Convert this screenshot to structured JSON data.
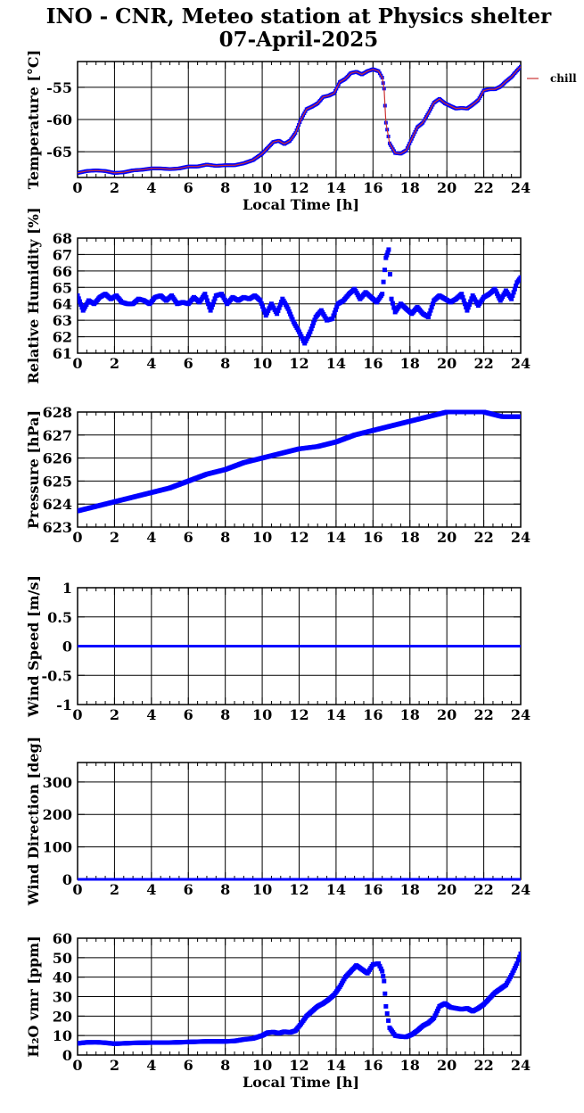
{
  "header": {
    "title_line1": "INO - CNR, Meteo station at Physics shelter",
    "title_line2": "07-April-2025"
  },
  "colors": {
    "series": "#0000ff",
    "temperature_line": "#cc3333",
    "grid": "#000000"
  },
  "chart_data": [
    {
      "id": "temperature",
      "type": "scatter",
      "ylabel": "Temperature [°C]",
      "xlabel": "Local Time [h]",
      "xlim": [
        0,
        24
      ],
      "ylim": [
        -69,
        -51
      ],
      "yticks": [
        -65,
        -60,
        -55
      ],
      "ytick_labels": [
        "-65",
        "-60",
        "-55"
      ],
      "xticks": [
        0,
        2,
        4,
        6,
        8,
        10,
        12,
        14,
        16,
        18,
        20,
        22,
        24
      ],
      "grid": true,
      "legend": {
        "label": "chill",
        "position": "right-top"
      },
      "x": [
        0,
        0.5,
        1,
        1.5,
        2,
        2.5,
        3,
        3.5,
        4,
        4.5,
        5,
        5.5,
        6,
        6.5,
        7,
        7.5,
        8,
        8.5,
        9,
        9.5,
        10,
        10.3,
        10.6,
        10.9,
        11.2,
        11.5,
        11.8,
        12.1,
        12.4,
        12.7,
        13.0,
        13.3,
        13.6,
        13.9,
        14.2,
        14.5,
        14.8,
        15.1,
        15.4,
        15.7,
        16.0,
        16.3,
        16.5,
        16.6,
        16.7,
        16.9,
        17.2,
        17.5,
        17.8,
        18.1,
        18.4,
        18.7,
        19.0,
        19.3,
        19.6,
        19.9,
        20.2,
        20.5,
        20.8,
        21.1,
        21.4,
        21.7,
        22.0,
        22.3,
        22.6,
        22.9,
        23.2,
        23.5,
        23.8,
        24
      ],
      "y": [
        -68.3,
        -68.0,
        -67.9,
        -68.0,
        -68.3,
        -68.2,
        -67.9,
        -67.8,
        -67.6,
        -67.6,
        -67.7,
        -67.6,
        -67.3,
        -67.3,
        -67.0,
        -67.2,
        -67.1,
        -67.1,
        -66.8,
        -66.3,
        -65.3,
        -64.4,
        -63.5,
        -63.3,
        -63.8,
        -63.3,
        -62.1,
        -60.0,
        -58.4,
        -58.0,
        -57.5,
        -56.5,
        -56.3,
        -55.9,
        -54.2,
        -53.7,
        -52.8,
        -52.6,
        -53.0,
        -52.5,
        -52.2,
        -52.5,
        -53.5,
        -55.2,
        -60.5,
        -63.7,
        -65.2,
        -65.3,
        -64.8,
        -63.0,
        -61.2,
        -60.5,
        -59.0,
        -57.4,
        -56.8,
        -57.5,
        -57.9,
        -58.3,
        -58.2,
        -58.3,
        -57.7,
        -57.0,
        -55.5,
        -55.3,
        -55.3,
        -54.9,
        -54.1,
        -53.4,
        -52.4,
        -51.8
      ]
    },
    {
      "id": "humidity",
      "type": "scatter",
      "ylabel": "Relative Humidity [%]",
      "xlim": [
        0,
        24
      ],
      "ylim": [
        61,
        68
      ],
      "yticks": [
        61,
        62,
        63,
        64,
        65,
        66,
        67,
        68
      ],
      "ytick_labels": [
        "61",
        "62",
        "63",
        "64",
        "65",
        "66",
        "67",
        "68"
      ],
      "xticks": [
        0,
        2,
        4,
        6,
        8,
        10,
        12,
        14,
        16,
        18,
        20,
        22,
        24
      ],
      "grid": true,
      "x": [
        0,
        0.3,
        0.6,
        0.9,
        1.2,
        1.5,
        1.8,
        2.1,
        2.4,
        2.7,
        3.0,
        3.3,
        3.6,
        3.9,
        4.2,
        4.5,
        4.8,
        5.1,
        5.4,
        5.7,
        6.0,
        6.3,
        6.6,
        6.9,
        7.2,
        7.5,
        7.8,
        8.1,
        8.4,
        8.7,
        9.0,
        9.3,
        9.6,
        9.9,
        10.2,
        10.5,
        10.8,
        11.1,
        11.4,
        11.7,
        12.0,
        12.3,
        12.6,
        12.9,
        13.2,
        13.5,
        13.8,
        14.1,
        14.4,
        14.7,
        15.0,
        15.3,
        15.6,
        15.9,
        16.2,
        16.5,
        16.7,
        16.85,
        17.0,
        17.2,
        17.5,
        17.8,
        18.1,
        18.4,
        18.7,
        19.0,
        19.3,
        19.6,
        19.9,
        20.2,
        20.5,
        20.8,
        21.1,
        21.4,
        21.7,
        22.0,
        22.3,
        22.6,
        22.9,
        23.2,
        23.5,
        23.8,
        24
      ],
      "y": [
        64.5,
        63.6,
        64.2,
        64.0,
        64.4,
        64.6,
        64.3,
        64.5,
        64.1,
        64.0,
        64.0,
        64.3,
        64.2,
        64.0,
        64.4,
        64.5,
        64.2,
        64.5,
        64.0,
        64.1,
        64.0,
        64.4,
        64.1,
        64.6,
        63.6,
        64.5,
        64.6,
        64.0,
        64.4,
        64.2,
        64.4,
        64.3,
        64.5,
        64.2,
        63.3,
        64.0,
        63.4,
        64.3,
        63.7,
        62.9,
        62.3,
        61.6,
        62.3,
        63.2,
        63.6,
        63.0,
        63.1,
        64.0,
        64.2,
        64.6,
        64.9,
        64.3,
        64.7,
        64.4,
        64.1,
        64.6,
        66.8,
        67.3,
        64.3,
        63.5,
        64.0,
        63.7,
        63.4,
        63.8,
        63.4,
        63.2,
        64.2,
        64.5,
        64.3,
        64.1,
        64.3,
        64.6,
        63.6,
        64.5,
        63.9,
        64.4,
        64.6,
        64.9,
        64.2,
        64.8,
        64.3,
        65.3,
        65.6
      ]
    },
    {
      "id": "pressure",
      "type": "scatter",
      "ylabel": "Pressure [hPa]",
      "xlim": [
        0,
        24
      ],
      "ylim": [
        623,
        628
      ],
      "yticks": [
        623,
        624,
        625,
        626,
        627,
        628
      ],
      "ytick_labels": [
        "623",
        "624",
        "625",
        "626",
        "627",
        "628"
      ],
      "xticks": [
        0,
        2,
        4,
        6,
        8,
        10,
        12,
        14,
        16,
        18,
        20,
        22,
        24
      ],
      "grid": true,
      "x": [
        0,
        1,
        2,
        3,
        4,
        5,
        6,
        7,
        8,
        9,
        10,
        11,
        12,
        13,
        14,
        15,
        16,
        17,
        18,
        19,
        20,
        21,
        22,
        23,
        24
      ],
      "y": [
        623.7,
        623.9,
        624.1,
        624.3,
        624.5,
        624.7,
        625.0,
        625.3,
        625.5,
        625.8,
        626.0,
        626.2,
        626.4,
        626.5,
        626.7,
        627.0,
        627.2,
        627.4,
        627.6,
        627.8,
        628.0,
        628.0,
        628.0,
        627.8,
        627.8
      ]
    },
    {
      "id": "wind_speed",
      "type": "line",
      "ylabel": "Wind Speed [m/s]",
      "xlim": [
        0,
        24
      ],
      "ylim": [
        -1,
        1
      ],
      "yticks": [
        -1,
        -0.5,
        0,
        0.5,
        1
      ],
      "ytick_labels": [
        "-1",
        "-0.5",
        "0",
        "0.5",
        "1"
      ],
      "xticks": [
        0,
        2,
        4,
        6,
        8,
        10,
        12,
        14,
        16,
        18,
        20,
        22,
        24
      ],
      "grid": true,
      "x": [
        0,
        24
      ],
      "y": [
        0,
        0
      ]
    },
    {
      "id": "wind_direction",
      "type": "line",
      "ylabel": "Wind Direction [deg]",
      "xlim": [
        0,
        24
      ],
      "ylim": [
        0,
        360
      ],
      "yticks": [
        0,
        100,
        200,
        300
      ],
      "ytick_labels": [
        "0",
        "100",
        "200",
        "300"
      ],
      "xticks": [
        0,
        2,
        4,
        6,
        8,
        10,
        12,
        14,
        16,
        18,
        20,
        22,
        24
      ],
      "grid": true,
      "x": [
        0,
        24
      ],
      "y": [
        0,
        0
      ]
    },
    {
      "id": "h2o_vmr",
      "type": "scatter",
      "ylabel": "H₂O vmr [ppm]",
      "xlabel": "Local Time [h]",
      "xlim": [
        0,
        24
      ],
      "ylim": [
        0,
        60
      ],
      "yticks": [
        0,
        10,
        20,
        30,
        40,
        50,
        60
      ],
      "ytick_labels": [
        "0",
        "10",
        "20",
        "30",
        "40",
        "50",
        "60"
      ],
      "xticks": [
        0,
        2,
        4,
        6,
        8,
        10,
        12,
        14,
        16,
        18,
        20,
        22,
        24
      ],
      "grid": true,
      "x": [
        0,
        0.5,
        1,
        1.5,
        2,
        3,
        4,
        5,
        6,
        7,
        8,
        8.5,
        9,
        9.5,
        10,
        10.3,
        10.6,
        10.9,
        11.2,
        11.5,
        11.8,
        12.1,
        12.4,
        12.7,
        13.0,
        13.3,
        13.6,
        13.9,
        14.2,
        14.5,
        14.8,
        15.1,
        15.4,
        15.7,
        16.0,
        16.3,
        16.5,
        16.6,
        16.7,
        16.9,
        17.2,
        17.5,
        17.8,
        18.1,
        18.4,
        18.7,
        19.0,
        19.3,
        19.6,
        19.9,
        20.2,
        20.5,
        20.8,
        21.1,
        21.4,
        21.7,
        22.0,
        22.3,
        22.6,
        22.9,
        23.2,
        23.5,
        23.8,
        24
      ],
      "y": [
        6.0,
        6.5,
        6.6,
        6.3,
        5.8,
        6.2,
        6.4,
        6.4,
        6.7,
        7.0,
        7.0,
        7.2,
        8.0,
        8.5,
        10.0,
        11.5,
        11.8,
        11.2,
        12.0,
        11.6,
        12.5,
        16.0,
        20.0,
        22.5,
        25.0,
        26.5,
        28.5,
        31.0,
        35.0,
        40.0,
        43.0,
        46.0,
        44.0,
        42.0,
        46.5,
        47.0,
        43.0,
        38.0,
        25.0,
        14.0,
        10.0,
        9.5,
        9.3,
        10.5,
        12.5,
        15.0,
        16.5,
        19.0,
        25.0,
        26.5,
        24.5,
        24.0,
        23.5,
        24.0,
        22.5,
        24.0,
        26.0,
        29.0,
        32.0,
        34.0,
        36.0,
        41.0,
        47.0,
        52.0
      ]
    }
  ]
}
